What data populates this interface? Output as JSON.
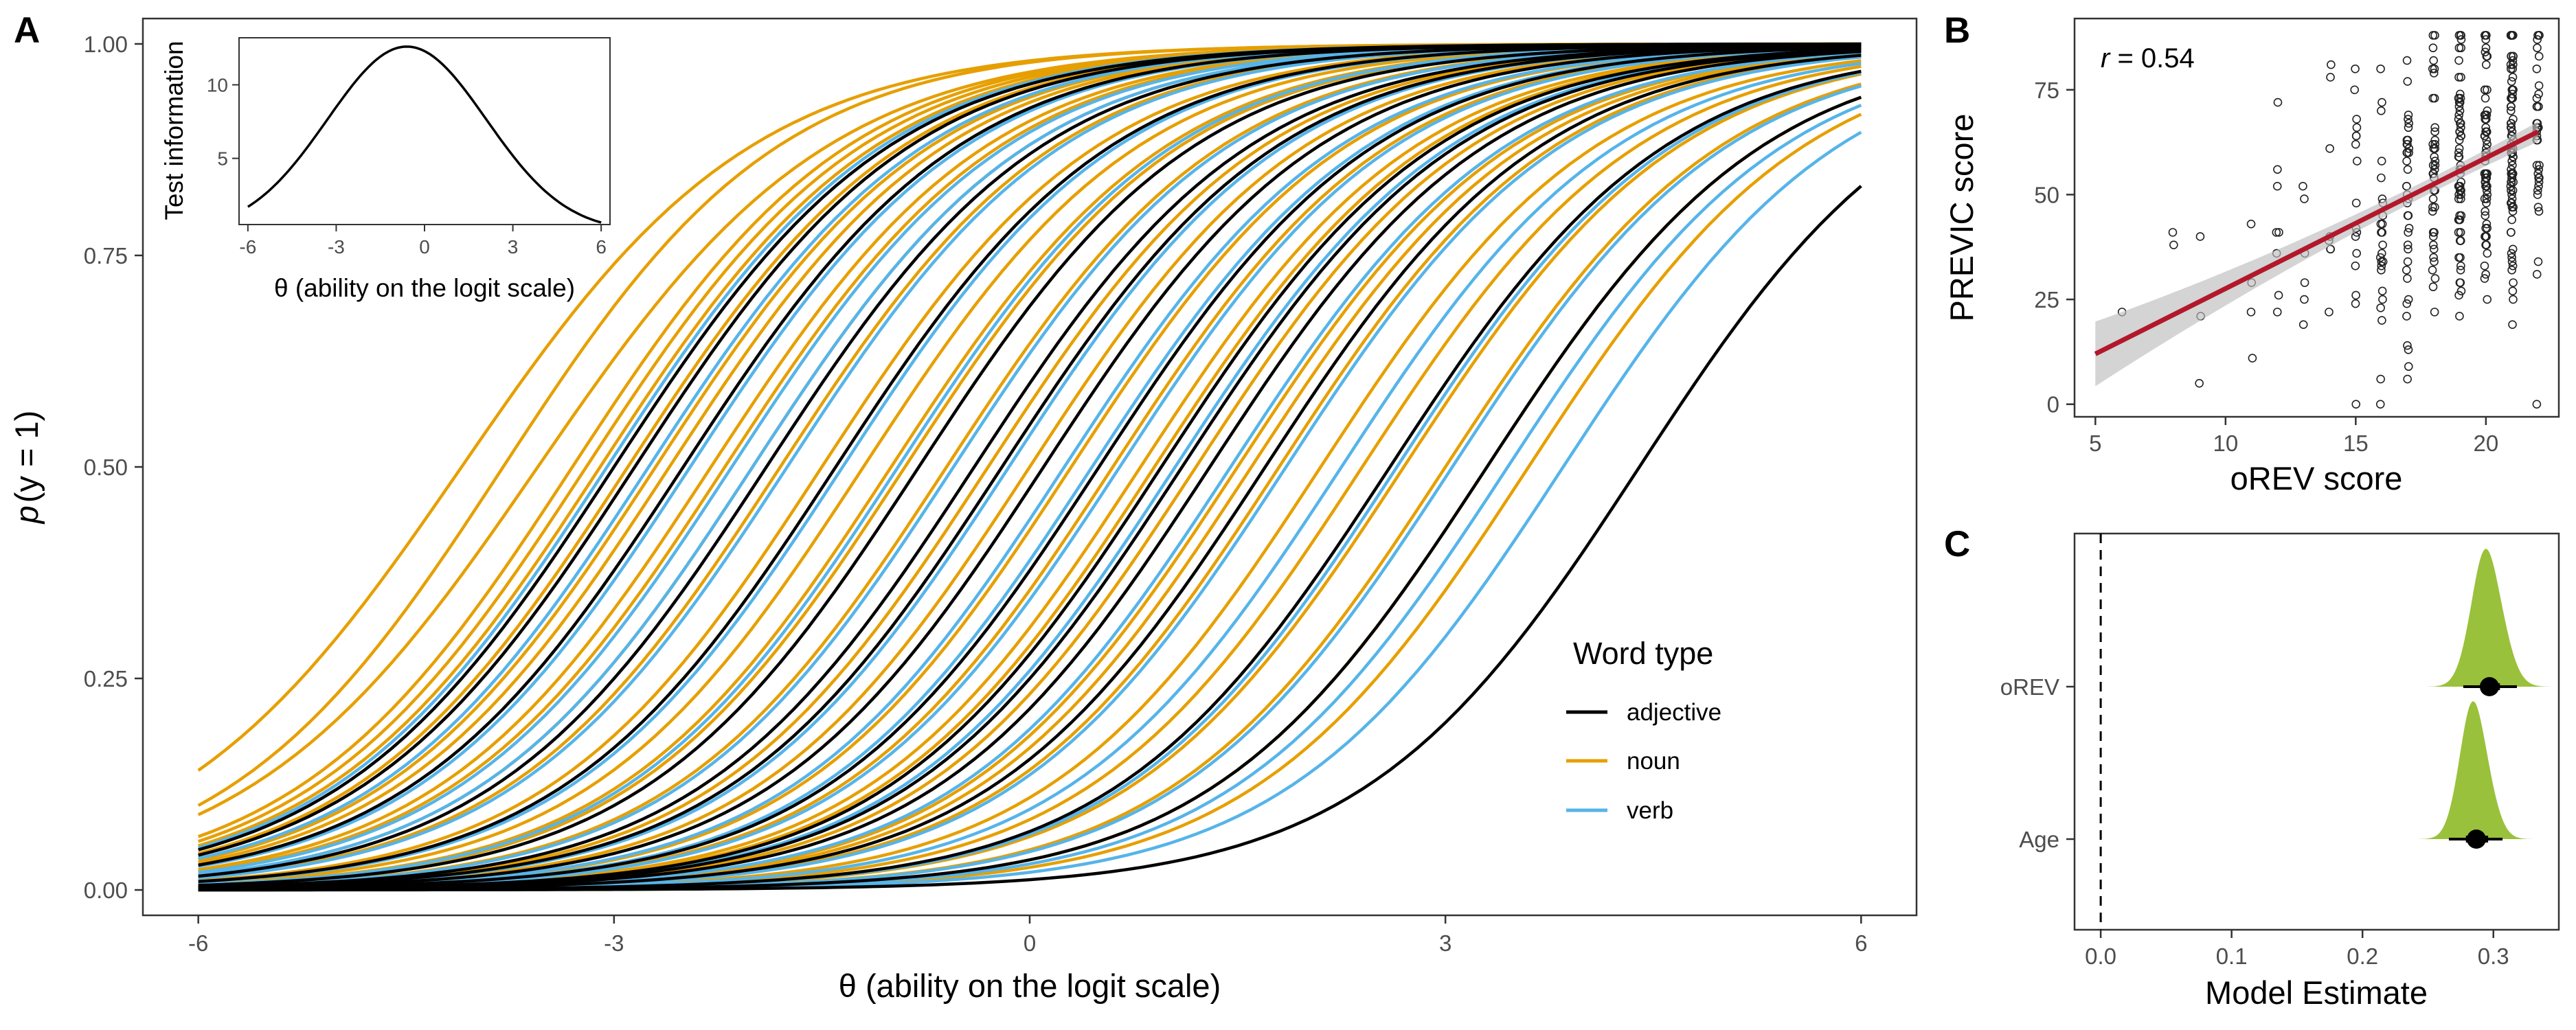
{
  "figure": {
    "panels": [
      {
        "id": "A",
        "letter": "A"
      },
      {
        "id": "B",
        "letter": "B"
      },
      {
        "id": "C",
        "letter": "C"
      }
    ]
  },
  "chart_data": [
    {
      "panel": "A",
      "type": "line",
      "description_model": "2PL item characteristic curves p = 1/(1+exp(-a(theta-b)))",
      "xlabel": "θ (ability on the logit scale)",
      "ylabel": "p(y = 1)",
      "xlim": [
        -6.4,
        6.4
      ],
      "ylim": [
        -0.03,
        1.03
      ],
      "xticks": [
        -6,
        -3,
        0,
        3,
        6
      ],
      "yticks": [
        0.0,
        0.25,
        0.5,
        0.75,
        1.0
      ],
      "xtick_labels": [
        "-6",
        "-3",
        "0",
        "3",
        "6"
      ],
      "ytick_labels": [
        "0.00",
        "0.25",
        "0.50",
        "0.75",
        "1.00"
      ],
      "grid": false,
      "legend": {
        "title": "Word type",
        "position": "bottom-right",
        "entries": [
          {
            "label": "adjective",
            "color": "#000000"
          },
          {
            "label": "noun",
            "color": "#E69F00"
          },
          {
            "label": "verb",
            "color": "#56B4E9"
          }
        ]
      },
      "series": [
        {
          "color": "#E69F00",
          "items": [
            {
              "a": 0.95,
              "b": -4.1
            },
            {
              "a": 1.0,
              "b": -3.8
            },
            {
              "a": 0.95,
              "b": -3.55
            },
            {
              "a": 1.0,
              "b": -3.3
            },
            {
              "a": 1.0,
              "b": -3.1
            },
            {
              "a": 1.0,
              "b": -2.9
            },
            {
              "a": 1.0,
              "b": -2.6
            },
            {
              "a": 1.0,
              "b": -2.3
            },
            {
              "a": 1.0,
              "b": -2.0
            },
            {
              "a": 1.0,
              "b": -1.8
            },
            {
              "a": 1.0,
              "b": -1.5
            },
            {
              "a": 1.0,
              "b": -1.2
            },
            {
              "a": 1.0,
              "b": -0.9
            },
            {
              "a": 1.0,
              "b": -0.6
            },
            {
              "a": 1.0,
              "b": -0.3
            },
            {
              "a": 1.0,
              "b": 0.0
            },
            {
              "a": 1.0,
              "b": 0.3
            },
            {
              "a": 1.0,
              "b": 0.6
            },
            {
              "a": 1.0,
              "b": 0.9
            },
            {
              "a": 1.0,
              "b": 1.2
            },
            {
              "a": 1.0,
              "b": 1.5
            },
            {
              "a": 1.0,
              "b": 1.8
            },
            {
              "a": 1.0,
              "b": 2.1
            },
            {
              "a": 1.0,
              "b": 2.4
            },
            {
              "a": 1.0,
              "b": 2.7
            },
            {
              "a": 1.0,
              "b": 3.0
            },
            {
              "a": 1.0,
              "b": 3.3
            },
            {
              "a": 1.0,
              "b": 3.6
            },
            {
              "a": 1.0,
              "b": -2.7
            },
            {
              "a": 1.0,
              "b": -2.2
            },
            {
              "a": 1.0,
              "b": -1.0
            },
            {
              "a": 1.0,
              "b": 0.8
            },
            {
              "a": 1.0,
              "b": 1.6
            },
            {
              "a": 1.0,
              "b": -3.2
            }
          ]
        },
        {
          "color": "#56B4E9",
          "items": [
            {
              "a": 1.0,
              "b": -3.05
            },
            {
              "a": 1.0,
              "b": -2.75
            },
            {
              "a": 1.0,
              "b": -2.45
            },
            {
              "a": 1.0,
              "b": -2.15
            },
            {
              "a": 1.0,
              "b": -1.75
            },
            {
              "a": 1.0,
              "b": -1.35
            },
            {
              "a": 1.0,
              "b": -0.95
            },
            {
              "a": 1.0,
              "b": -0.55
            },
            {
              "a": 1.0,
              "b": -0.15
            },
            {
              "a": 1.0,
              "b": 0.25
            },
            {
              "a": 1.0,
              "b": 0.65
            },
            {
              "a": 1.0,
              "b": 1.05
            },
            {
              "a": 1.0,
              "b": 1.45
            },
            {
              "a": 1.0,
              "b": 1.85
            },
            {
              "a": 1.0,
              "b": 2.25
            },
            {
              "a": 1.0,
              "b": 2.65
            },
            {
              "a": 1.0,
              "b": 3.05
            },
            {
              "a": 1.0,
              "b": 3.45
            },
            {
              "a": 1.0,
              "b": 3.85
            },
            {
              "a": 1.0,
              "b": -2.0
            },
            {
              "a": 1.0,
              "b": 0.45
            }
          ]
        },
        {
          "color": "#000000",
          "items": [
            {
              "a": 1.0,
              "b": -3.0
            },
            {
              "a": 1.0,
              "b": -2.85
            },
            {
              "a": 1.0,
              "b": -2.5
            },
            {
              "a": 1.0,
              "b": -1.9
            },
            {
              "a": 1.0,
              "b": -1.4
            },
            {
              "a": 1.0,
              "b": -0.8
            },
            {
              "a": 1.0,
              "b": -0.4
            },
            {
              "a": 1.0,
              "b": 0.1
            },
            {
              "a": 1.0,
              "b": 0.5
            },
            {
              "a": 1.0,
              "b": 0.95
            },
            {
              "a": 1.0,
              "b": 1.3
            },
            {
              "a": 1.0,
              "b": 1.7
            },
            {
              "a": 1.0,
              "b": 2.6
            },
            {
              "a": 1.0,
              "b": 3.3
            },
            {
              "a": 1.0,
              "b": 4.4
            },
            {
              "a": 1.0,
              "b": -0.2
            },
            {
              "a": 1.0,
              "b": 1.1
            }
          ]
        }
      ],
      "inset": {
        "type": "line",
        "xlabel": "θ (ability on the logit scale)",
        "ylabel": "Test information",
        "xlim": [
          -6.3,
          6.3
        ],
        "ylim": [
          0.5,
          13.2
        ],
        "xticks": [
          -6,
          -3,
          0,
          3,
          6
        ],
        "xtick_labels": [
          "-6",
          "-3",
          "0",
          "3",
          "6"
        ],
        "yticks": [
          5,
          10
        ],
        "ytick_labels": [
          "5",
          "10"
        ],
        "curve": {
          "peak": 12.6,
          "center": -0.6,
          "width": 2.7
        }
      }
    },
    {
      "panel": "B",
      "type": "scatter",
      "xlabel": "oREV score",
      "ylabel": "PREVIC score",
      "xlim": [
        4.2,
        22.8
      ],
      "ylim": [
        -3,
        92
      ],
      "xticks": [
        5,
        10,
        15,
        20
      ],
      "xtick_labels": [
        "5",
        "10",
        "15",
        "20"
      ],
      "yticks": [
        0,
        25,
        50,
        75
      ],
      "ytick_labels": [
        "0",
        "25",
        "50",
        "75"
      ],
      "annotation_r": "r",
      "annotation_eq": " = 0.54",
      "fit_line": {
        "x": [
          5,
          22
        ],
        "y": [
          12,
          65
        ],
        "color": "#B2182B"
      },
      "points_summary": {
        "n": 420,
        "x_min": 5,
        "x_max": 22,
        "y_min": 0,
        "y_max": 88
      }
    },
    {
      "panel": "C",
      "type": "density",
      "xlabel": "Model Estimate",
      "xlim": [
        -0.02,
        0.35
      ],
      "xticks": [
        0.0,
        0.1,
        0.2,
        0.3
      ],
      "xtick_labels": [
        "0.0",
        "0.1",
        "0.2",
        "0.3"
      ],
      "reference_line": 0,
      "categories": [
        "oREV",
        "Age"
      ],
      "fill_color": "#9AC13B",
      "estimates": [
        {
          "label": "oREV",
          "median": 0.297,
          "sd": 0.012,
          "ci66": [
            0.29,
            0.305
          ],
          "ci95": [
            0.277,
            0.318
          ]
        },
        {
          "label": "Age",
          "median": 0.287,
          "sd": 0.011,
          "ci66": [
            0.279,
            0.296
          ],
          "ci95": [
            0.266,
            0.307
          ]
        }
      ]
    }
  ]
}
